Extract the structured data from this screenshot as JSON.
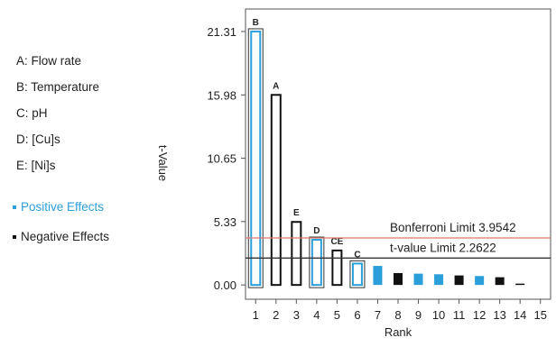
{
  "factors": [
    {
      "label": "A: Flow rate"
    },
    {
      "label": "B: Temperature"
    },
    {
      "label": "C: pH"
    },
    {
      "label": "D: [Cu]s"
    },
    {
      "label": "E: [Ni]s"
    }
  ],
  "effects_legend": [
    {
      "label": "Positive Effects",
      "color": "#2b9fd9"
    },
    {
      "label": "Negative Effects",
      "color": "#111111"
    }
  ],
  "chart_data": {
    "type": "bar",
    "title": "",
    "xlabel": "Rank",
    "ylabel": "t-Value",
    "x_ticks": [
      "1",
      "2",
      "3",
      "4",
      "5",
      "6",
      "7",
      "8",
      "9",
      "10",
      "11",
      "12",
      "13",
      "14",
      "15"
    ],
    "y_ticks": [
      "0.00",
      "5.33",
      "10.65",
      "15.98",
      "21.31"
    ],
    "y_tick_values": [
      0,
      5.33,
      10.65,
      15.98,
      21.31
    ],
    "ylim": [
      -1.2,
      23.2
    ],
    "xlim": [
      0.5,
      15.5
    ],
    "grid": false,
    "bars": [
      {
        "rank": 1,
        "value": 21.31,
        "effect": "positive",
        "style": "outline",
        "label": "B"
      },
      {
        "rank": 2,
        "value": 15.98,
        "effect": "negative",
        "style": "outline",
        "label": "A"
      },
      {
        "rank": 3,
        "value": 5.3,
        "effect": "negative",
        "style": "outline",
        "label": "E"
      },
      {
        "rank": 4,
        "value": 3.8,
        "effect": "positive",
        "style": "outline",
        "label": "D"
      },
      {
        "rank": 5,
        "value": 2.9,
        "effect": "negative",
        "style": "outline",
        "label": "CE"
      },
      {
        "rank": 6,
        "value": 1.8,
        "effect": "positive",
        "style": "outline",
        "label": "C"
      },
      {
        "rank": 7,
        "value": 1.6,
        "effect": "positive",
        "style": "filled",
        "label": ""
      },
      {
        "rank": 8,
        "value": 1.0,
        "effect": "negative",
        "style": "filled",
        "label": ""
      },
      {
        "rank": 9,
        "value": 0.95,
        "effect": "positive",
        "style": "filled",
        "label": ""
      },
      {
        "rank": 10,
        "value": 0.9,
        "effect": "positive",
        "style": "filled",
        "label": ""
      },
      {
        "rank": 11,
        "value": 0.8,
        "effect": "negative",
        "style": "filled",
        "label": ""
      },
      {
        "rank": 12,
        "value": 0.75,
        "effect": "positive",
        "style": "filled",
        "label": ""
      },
      {
        "rank": 13,
        "value": 0.65,
        "effect": "negative",
        "style": "filled",
        "label": ""
      },
      {
        "rank": 14,
        "value": 0.05,
        "effect": "negative",
        "style": "filled",
        "label": ""
      }
    ],
    "reference_lines": [
      {
        "name": "Bonferroni Limit",
        "value": 3.9542,
        "label": "Bonferroni Limit 3.9542",
        "color": "#d9776f"
      },
      {
        "name": "t-value Limit",
        "value": 2.2622,
        "label": "t-value Limit 2.2622",
        "color": "#333333"
      }
    ]
  }
}
